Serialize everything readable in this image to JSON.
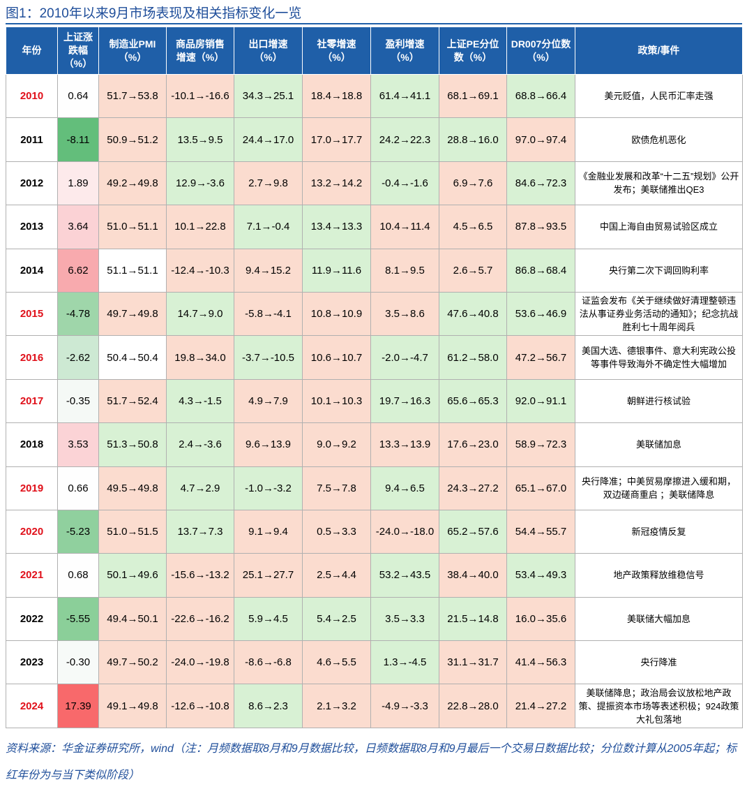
{
  "title": "图1：2010年以来9月市场表现及相关指标变化一览",
  "table": {
    "header": [
      "年份",
      "上证涨\n跌幅\n（%）",
      "制造业PMI\n（%）",
      "商品房销售\n增速（%）",
      "出口增速\n（%）",
      "社零增速\n（%）",
      "盈利增速\n（%）",
      "上证PE分位\n数（%）",
      "DR007分位数\n（%）",
      "政策/事件"
    ],
    "header_color": "#1f5fa8",
    "rows": [
      {
        "year_color": "#e0101a",
        "cells": [
          "2010",
          "0.64",
          "51.7→53.8",
          "-10.1→-16.6",
          "34.3→25.1",
          "18.4→18.8",
          "61.4→41.1",
          "68.1→69.1",
          "68.8→66.4",
          "美元贬值，人民币汇率走强"
        ],
        "fills": [
          "#ffffff",
          "#fefefe",
          "#fbdccf",
          "#fbdccf",
          "#d8f1d4",
          "#fbdccf",
          "#d8f1d4",
          "#fbdccf",
          "#d8f1d4",
          "#ffffff"
        ]
      },
      {
        "year_color": "#000000",
        "cells": [
          "2011",
          "-8.11",
          "50.9→51.2",
          "13.5→9.5",
          "24.4→17.0",
          "17.0→17.7",
          "24.2→22.3",
          "28.8→16.0",
          "97.0→97.4",
          "欧债危机恶化"
        ],
        "fills": [
          "#ffffff",
          "#63be7b",
          "#fbdccf",
          "#d8f1d4",
          "#d8f1d4",
          "#fbdccf",
          "#d8f1d4",
          "#d8f1d4",
          "#fbdccf",
          "#ffffff"
        ]
      },
      {
        "year_color": "#000000",
        "cells": [
          "2012",
          "1.89",
          "49.2→49.8",
          "12.9→-3.6",
          "2.7→9.8",
          "13.2→14.2",
          "-0.4→-1.6",
          "6.9→7.6",
          "84.6→72.3",
          "《金融业发展和改革“十二五”规划》公开发布；美联储推出QE3"
        ],
        "fills": [
          "#ffffff",
          "#fdeaeb",
          "#fbdccf",
          "#d8f1d4",
          "#fbdccf",
          "#fbdccf",
          "#d8f1d4",
          "#fbdccf",
          "#d8f1d4",
          "#ffffff"
        ]
      },
      {
        "year_color": "#000000",
        "cells": [
          "2013",
          "3.64",
          "51.0→51.1",
          "10.1→22.8",
          "7.1→-0.4",
          "13.4→13.3",
          "10.4→11.4",
          "4.5→6.5",
          "87.8→93.5",
          "中国上海自由贸易试验区成立"
        ],
        "fills": [
          "#ffffff",
          "#fbd2d5",
          "#fbdccf",
          "#fbdccf",
          "#d8f1d4",
          "#d8f1d4",
          "#fbdccf",
          "#fbdccf",
          "#fbdccf",
          "#ffffff"
        ]
      },
      {
        "year_color": "#000000",
        "cells": [
          "2014",
          "6.62",
          "51.1→51.1",
          "-12.4→-10.3",
          "9.4→15.2",
          "11.9→11.6",
          "8.1→9.5",
          "2.6→5.7",
          "86.8→68.4",
          "央行第二次下调回购利率"
        ],
        "fills": [
          "#ffffff",
          "#f8aaae",
          "#ffffff",
          "#fbdccf",
          "#fbdccf",
          "#d8f1d4",
          "#fbdccf",
          "#fbdccf",
          "#d8f1d4",
          "#ffffff"
        ]
      },
      {
        "year_color": "#e0101a",
        "cells": [
          "2015",
          "-4.78",
          "49.7→49.8",
          "14.7→9.0",
          "-5.8→-4.1",
          "10.8→10.9",
          "3.5→8.6",
          "47.6→40.8",
          "53.6→46.9",
          "证监会发布《关于继续做好清理整顿违法从事证券业务活动的通知》；纪念抗战胜利七十周年阅兵"
        ],
        "fills": [
          "#ffffff",
          "#9fd6aa",
          "#fbdccf",
          "#d8f1d4",
          "#fbdccf",
          "#fbdccf",
          "#fbdccf",
          "#d8f1d4",
          "#d8f1d4",
          "#ffffff"
        ]
      },
      {
        "year_color": "#e0101a",
        "cells": [
          "2016",
          "-2.62",
          "50.4→50.4",
          "19.8→34.0",
          "-3.7→-10.5",
          "10.6→10.7",
          "-2.0→-4.7",
          "61.2→58.0",
          "47.2→56.7",
          "美国大选、德银事件、意大利宪政公投等事件导致海外不确定性大幅增加"
        ],
        "fills": [
          "#ffffff",
          "#cde9d3",
          "#ffffff",
          "#fbdccf",
          "#d8f1d4",
          "#fbdccf",
          "#d8f1d4",
          "#d8f1d4",
          "#fbdccf",
          "#ffffff"
        ]
      },
      {
        "year_color": "#e0101a",
        "cells": [
          "2017",
          "-0.35",
          "51.7→52.4",
          "4.3→-1.5",
          "4.9→7.9",
          "10.1→10.3",
          "19.7→16.3",
          "65.6→65.3",
          "92.0→91.1",
          "朝鲜进行核试验"
        ],
        "fills": [
          "#ffffff",
          "#f5f9f6",
          "#fbdccf",
          "#d8f1d4",
          "#fbdccf",
          "#fbdccf",
          "#d8f1d4",
          "#d8f1d4",
          "#d8f1d4",
          "#ffffff"
        ]
      },
      {
        "year_color": "#000000",
        "cells": [
          "2018",
          "3.53",
          "51.3→50.8",
          "2.4→-3.6",
          "9.6→13.9",
          "9.0→9.2",
          "13.3→13.9",
          "17.6→23.0",
          "58.9→72.3",
          "美联储加息"
        ],
        "fills": [
          "#ffffff",
          "#fbd3d6",
          "#d8f1d4",
          "#d8f1d4",
          "#fbdccf",
          "#fbdccf",
          "#fbdccf",
          "#fbdccf",
          "#fbdccf",
          "#ffffff"
        ]
      },
      {
        "year_color": "#e0101a",
        "cells": [
          "2019",
          "0.66",
          "49.5→49.8",
          "4.7→2.9",
          "-1.0→-3.2",
          "7.5→7.8",
          "9.4→6.5",
          "24.3→27.2",
          "65.1→67.0",
          "央行降准；中美贸易摩擦进入缓和期，双边磋商重启 ；美联储降息"
        ],
        "fills": [
          "#ffffff",
          "#fefefe",
          "#fbdccf",
          "#d8f1d4",
          "#d8f1d4",
          "#fbdccf",
          "#d8f1d4",
          "#fbdccf",
          "#fbdccf",
          "#ffffff"
        ]
      },
      {
        "year_color": "#e0101a",
        "cells": [
          "2020",
          "-5.23",
          "51.0→51.5",
          "13.7→7.3",
          "9.1→9.4",
          "0.5→3.3",
          "-24.0→-18.0",
          "65.2→57.6",
          "54.4→55.7",
          "新冠疫情反复"
        ],
        "fills": [
          "#ffffff",
          "#90d09e",
          "#fbdccf",
          "#d8f1d4",
          "#fbdccf",
          "#fbdccf",
          "#fbdccf",
          "#d8f1d4",
          "#fbdccf",
          "#ffffff"
        ]
      },
      {
        "year_color": "#e0101a",
        "cells": [
          "2021",
          "0.68",
          "50.1→49.6",
          "-15.6→-13.2",
          "25.1→27.7",
          "2.5→4.4",
          "53.2→43.5",
          "38.4→40.0",
          "53.4→49.3",
          "地产政策释放维稳信号"
        ],
        "fills": [
          "#ffffff",
          "#fefefe",
          "#d8f1d4",
          "#fbdccf",
          "#fbdccf",
          "#fbdccf",
          "#d8f1d4",
          "#fbdccf",
          "#d8f1d4",
          "#ffffff"
        ]
      },
      {
        "year_color": "#000000",
        "cells": [
          "2022",
          "-5.55",
          "49.4→50.1",
          "-22.6→-16.2",
          "5.9→4.5",
          "5.4→2.5",
          "3.5→3.3",
          "21.5→14.8",
          "16.0→35.6",
          "美联储大幅加息"
        ],
        "fills": [
          "#ffffff",
          "#8bcf99",
          "#fbdccf",
          "#fbdccf",
          "#d8f1d4",
          "#d8f1d4",
          "#d8f1d4",
          "#d8f1d4",
          "#fbdccf",
          "#ffffff"
        ]
      },
      {
        "year_color": "#000000",
        "cells": [
          "2023",
          "-0.30",
          "49.7→50.2",
          "-24.0→-19.8",
          "-8.6→-6.8",
          "4.6→5.5",
          "1.3→-4.5",
          "31.1→31.7",
          "41.4→56.3",
          "央行降准"
        ],
        "fills": [
          "#ffffff",
          "#f7faf8",
          "#fbdccf",
          "#fbdccf",
          "#fbdccf",
          "#fbdccf",
          "#d8f1d4",
          "#fbdccf",
          "#fbdccf",
          "#ffffff"
        ]
      },
      {
        "year_color": "#e0101a",
        "cells": [
          "2024",
          "17.39",
          "49.1→49.8",
          "-12.6→-10.8",
          "8.6→2.3",
          "2.1→3.2",
          "-4.9→-3.3",
          "22.8→28.0",
          "21.4→27.2",
          "美联储降息；政治局会议放松地产政策、提振资本市场等表述积极；924政策大礼包落地"
        ],
        "fills": [
          "#ffffff",
          "#f8696b",
          "#fbdccf",
          "#fbdccf",
          "#d8f1d4",
          "#fbdccf",
          "#fbdccf",
          "#fbdccf",
          "#fbdccf",
          "#ffffff"
        ]
      }
    ]
  },
  "source": "资料来源：华金证券研究所，wind（注：月频数据取8月和9月数据比较，日频数据取8月和9月最后一个交易日数据比较；分位数计算从2005年起；标红年份为与当下类似阶段）"
}
